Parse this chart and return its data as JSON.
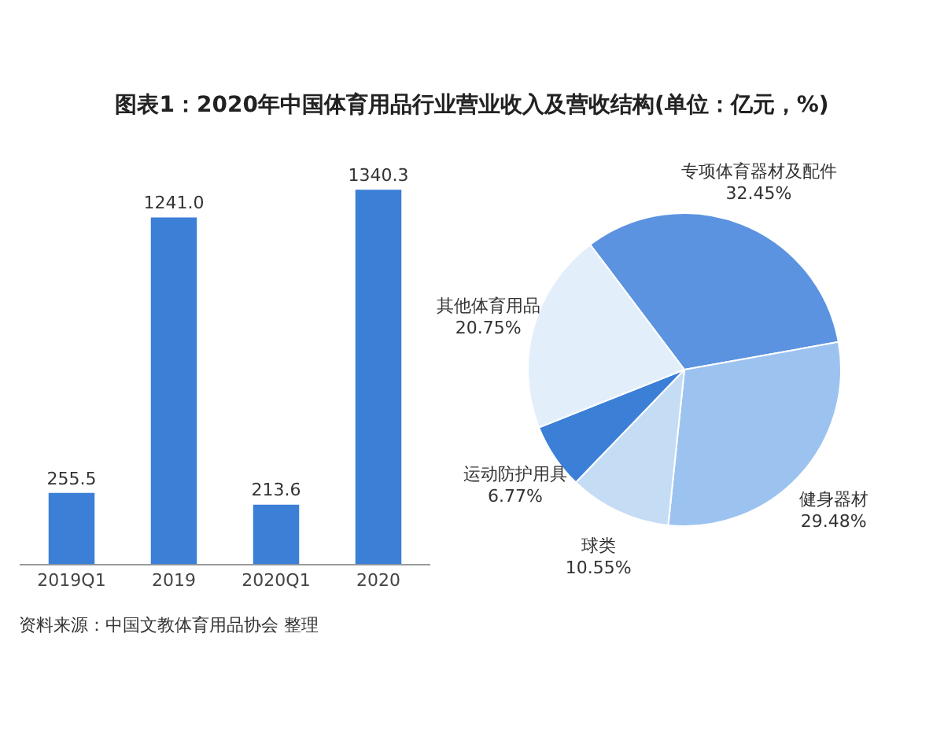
{
  "chart_data": [
    {
      "type": "bar",
      "title": "图表1：2020年中国体育用品行业营业收入及营收结构(单位：亿元，%)",
      "categories": [
        "2019Q1",
        "2019",
        "2020Q1",
        "2020"
      ],
      "values": [
        255.5,
        1241.0,
        213.6,
        1340.3
      ],
      "value_labels": [
        "255.5",
        "1241.0",
        "213.6",
        "1340.3"
      ],
      "color": "#3b7fd6",
      "tick_labels": "x",
      "grid": false,
      "legend": false,
      "annotations": [
        "资料来源：中国文教体育用品协会 整理"
      ]
    },
    {
      "type": "pie",
      "categories": [
        "专项体育器材及配件",
        "健身器材",
        "球类",
        "运动防护用具",
        "其他体育用品"
      ],
      "values": [
        32.45,
        29.48,
        10.55,
        6.77,
        20.75
      ],
      "value_labels": [
        "32.45%",
        "29.48%",
        "10.55%",
        "6.77%",
        "20.75%"
      ],
      "colors": [
        "#5b93e0",
        "#9cc3f0",
        "#c5dcf5",
        "#3b7fd6",
        "#e3eefb"
      ],
      "legend": false
    }
  ]
}
